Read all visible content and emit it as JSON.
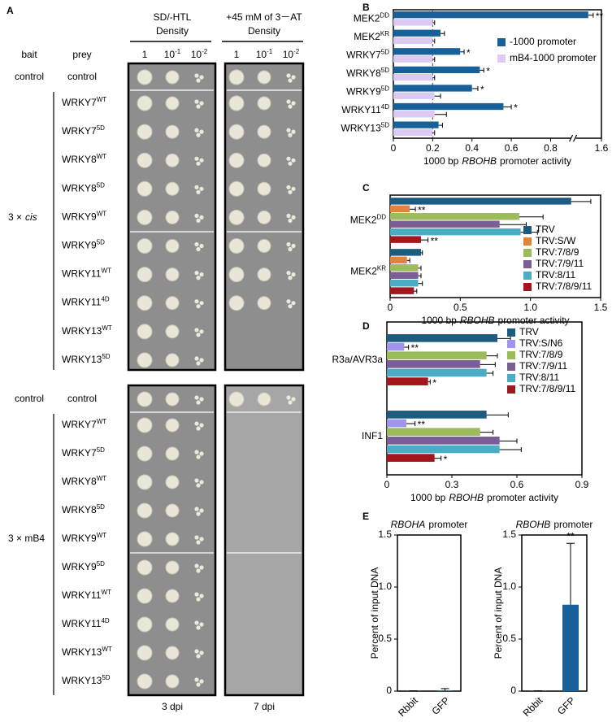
{
  "panel_a": {
    "label": "A",
    "conditions": [
      {
        "title": "SD/-HTL",
        "subtitle": "Density",
        "time": "3 dpi"
      },
      {
        "title": "+45 mM of 3－AT",
        "subtitle": "Density",
        "time": "7 dpi"
      }
    ],
    "dilutions": [
      {
        "base": "1"
      },
      {
        "base": "10",
        "exp": "-1"
      },
      {
        "base": "10",
        "exp": "-2"
      }
    ],
    "column_headers": [
      "bait",
      "prey"
    ],
    "blocks": [
      {
        "control_bait": "control",
        "control_prey": "control",
        "bait_parts": [
          "3 ×",
          "cis"
        ],
        "rows": [
          {
            "name": "WRKY7",
            "sup": "WT"
          },
          {
            "name": "WRKY7",
            "sup": "5D"
          },
          {
            "name": "WRKY8",
            "sup": "WT"
          },
          {
            "name": "WRKY8",
            "sup": "5D"
          },
          {
            "name": "WRKY9",
            "sup": "WT"
          },
          {
            "name": "WRKY9",
            "sup": "5D"
          },
          {
            "name": "WRKY11",
            "sup": "WT"
          },
          {
            "name": "WRKY11",
            "sup": "4D"
          },
          {
            "name": "WRKY13",
            "sup": "WT"
          },
          {
            "name": "WRKY13",
            "sup": "5D"
          }
        ]
      },
      {
        "control_bait": "control",
        "control_prey": "control",
        "bait_parts": [
          "3 × mB4"
        ],
        "rows": [
          {
            "name": "WRKY7",
            "sup": "WT"
          },
          {
            "name": "WRKY7",
            "sup": "5D"
          },
          {
            "name": "WRKY8",
            "sup": "WT"
          },
          {
            "name": "WRKY8",
            "sup": "5D"
          },
          {
            "name": "WRKY9",
            "sup": "WT"
          },
          {
            "name": "WRKY9",
            "sup": "5D"
          },
          {
            "name": "WRKY11",
            "sup": "WT"
          },
          {
            "name": "WRKY11",
            "sup": "4D"
          },
          {
            "name": "WRKY13",
            "sup": "WT"
          },
          {
            "name": "WRKY13",
            "sup": "5D"
          }
        ]
      }
    ]
  },
  "chart_data": [
    {
      "type": "hbar",
      "panel": "B",
      "categories": [
        "MEK2",
        "MEK2",
        "WRKY7",
        "WRKY8",
        "WRKY9",
        "WRKY11",
        "WRKY13"
      ],
      "category_superscripts": [
        "DD",
        "KR",
        "5D",
        "5D",
        "5D",
        "4D",
        "5D"
      ],
      "series": [
        {
          "name": "-1000 promoter",
          "color": "#17609a",
          "values": [
            1.52,
            0.24,
            0.34,
            0.44,
            0.4,
            0.56,
            0.23
          ],
          "errors": [
            0.03,
            0.02,
            0.02,
            0.02,
            0.03,
            0.04,
            0.02
          ],
          "significance": [
            "**",
            null,
            "*",
            "*",
            "*",
            "*",
            null
          ]
        },
        {
          "name": "mB4-1000 promoter",
          "color": "#dccaf2",
          "values": [
            0.2,
            0.2,
            0.2,
            0.2,
            0.21,
            0.21,
            0.2
          ],
          "errors": [
            0.01,
            0.01,
            0.01,
            0.01,
            0.03,
            0.06,
            0.01
          ]
        }
      ],
      "xlim": [
        0,
        1.6
      ],
      "xticks": [
        0,
        0.2,
        0.4,
        0.6,
        0.8,
        1.6
      ],
      "axis_break": [
        0.9,
        1.45
      ],
      "reference_line": 0.2,
      "xlabel": [
        "1000 bp",
        "RBOHB",
        "promoter activity"
      ],
      "legend": "upper right"
    },
    {
      "type": "hbar",
      "panel": "C",
      "categories": [
        "MEK2",
        "MEK2"
      ],
      "category_superscripts": [
        "DD",
        "KR"
      ],
      "series": [
        {
          "name": "TRV",
          "color": "#1d5b80",
          "values": [
            1.29,
            0.22
          ],
          "errors": [
            0.14,
            0.01
          ]
        },
        {
          "name": "TRV:S/W",
          "color": "#e3823a",
          "values": [
            0.14,
            0.12
          ],
          "errors": [
            0.04,
            0.02
          ],
          "significance": [
            "**",
            null
          ]
        },
        {
          "name": "TRV:7/8/9",
          "color": "#9cbb5a",
          "values": [
            0.92,
            0.2
          ],
          "errors": [
            0.17,
            0.02
          ]
        },
        {
          "name": "TRV:7/9/11",
          "color": "#7b5e95",
          "values": [
            0.78,
            0.2
          ],
          "errors": [
            0.19,
            0.02
          ]
        },
        {
          "name": "TRV:8/11",
          "color": "#4bacc6",
          "values": [
            0.93,
            0.2
          ],
          "errors": [
            0.12,
            0.03
          ]
        },
        {
          "name": "TRV:7/8/9/11",
          "color": "#a3161c",
          "values": [
            0.22,
            0.17
          ],
          "errors": [
            0.05,
            0.02
          ],
          "significance": [
            "**",
            null
          ]
        }
      ],
      "xlim": [
        0,
        1.5
      ],
      "xticks": [
        0,
        0.5,
        {
          "value": 1,
          "label": "1.0"
        },
        1.5
      ],
      "xlabel": [
        "1000 bp",
        "RBOHB",
        "promoter activity"
      ],
      "legend": "lower right"
    },
    {
      "type": "hbar",
      "panel": "D",
      "categories": [
        "R3a/AVR3a",
        "INF1"
      ],
      "series": [
        {
          "name": "TRV",
          "color": "#1d5b80",
          "values": [
            0.51,
            0.46
          ],
          "errors": [
            0.06,
            0.1
          ]
        },
        {
          "name": "TRV:S/N6",
          "color": "#a094ee",
          "values": [
            0.08,
            0.09
          ],
          "errors": [
            0.02,
            0.04
          ],
          "significance": [
            "**",
            "**"
          ]
        },
        {
          "name": "TRV:7/8/9",
          "color": "#9cbb5a",
          "values": [
            0.46,
            0.43
          ],
          "errors": [
            0.05,
            0.06
          ]
        },
        {
          "name": "TRV:7/9/11",
          "color": "#7b5e95",
          "values": [
            0.43,
            0.52
          ],
          "errors": [
            0.07,
            0.08
          ]
        },
        {
          "name": "TRV:8/11",
          "color": "#4bacc6",
          "values": [
            0.46,
            0.52
          ],
          "errors": [
            0.03,
            0.1
          ]
        },
        {
          "name": "TRV:7/8/9/11",
          "color": "#a3161c",
          "values": [
            0.19,
            0.22
          ],
          "errors": [
            0.01,
            0.03
          ],
          "significance": [
            "*",
            "*"
          ]
        }
      ],
      "xlim": [
        0,
        0.9
      ],
      "xticks": [
        0,
        0.3,
        0.6,
        0.9
      ],
      "xlabel": [
        "1000 bp",
        "RBOHB",
        "promoter activity"
      ],
      "legend": "upper right"
    },
    {
      "type": "bar",
      "panel": "E",
      "title": [
        "RBOHA",
        "promoter"
      ],
      "categories": [
        "Rbbit",
        "GFP"
      ],
      "values": [
        0.002,
        0.004
      ],
      "errors": [
        0.001,
        0.02
      ],
      "color": "#17609a",
      "ylim": [
        0,
        1.5
      ],
      "yticks": [
        0,
        0.5,
        {
          "value": 1,
          "label": "1.0"
        },
        1.5
      ],
      "ylabel": "Percent of input DNA"
    },
    {
      "type": "bar",
      "title": [
        "RBOHB",
        "promoter"
      ],
      "categories": [
        "Rbbit",
        "GFP"
      ],
      "values": [
        0.002,
        0.83
      ],
      "errors": [
        0.001,
        0.59
      ],
      "significance": [
        null,
        "**"
      ],
      "color": "#17609a",
      "ylim": [
        0,
        1.5
      ],
      "yticks": [
        0,
        0.5,
        {
          "value": 1,
          "label": "1.0"
        },
        1.5
      ],
      "ylabel": "Percent of input DNA"
    }
  ]
}
